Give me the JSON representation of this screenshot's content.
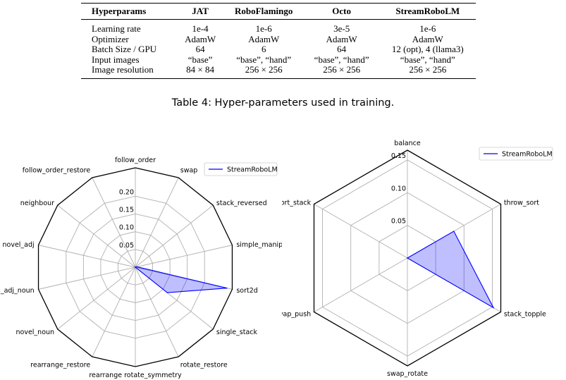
{
  "table": {
    "headers": [
      "Hyperparams",
      "JAT",
      "RoboFlamingo",
      "Octo",
      "StreamRoboLM"
    ],
    "rows": [
      [
        "Learning rate",
        "1e-4",
        "1e-6",
        "3e-5",
        "1e-6"
      ],
      [
        "Optimizer",
        "AdamW",
        "AdamW",
        "AdamW",
        "AdamW"
      ],
      [
        "Batch Size / GPU",
        "64",
        "6",
        "64",
        "12 (opt), 4 (llama3)"
      ],
      [
        "Input images",
        "“base”",
        "“base”, “hand”",
        "“base”, “hand”",
        "“base”, “hand”"
      ],
      [
        "Image resolution",
        "84 × 84",
        "256 × 256",
        "256 × 256",
        "256 × 256"
      ]
    ]
  },
  "caption": "Table 4: Hyper-parameters used in training.",
  "chart_data": [
    {
      "type": "radar",
      "categories": [
        "follow_order",
        "swap",
        "stack_reversed",
        "simple_manipulation",
        "sort2d",
        "single_stack",
        "rotate_restore",
        "rearrange rotate_symmetry",
        "rearrange_restore",
        "novel_noun",
        "novel_adj_noun",
        "novel_adj",
        "neighbour",
        "follow_order_restore"
      ],
      "ticks": [
        "0.05",
        "0.10",
        "0.15",
        "0.20"
      ],
      "rlim": [
        0,
        0.28
      ],
      "series": [
        {
          "name": "StreamRoboLM",
          "values": [
            0.0,
            0.0,
            0.0,
            0.005,
            0.265,
            0.115,
            0.0,
            0.0,
            0.0,
            0.0,
            0.0,
            0.0,
            0.0,
            0.0
          ],
          "color": "#0000ff"
        }
      ],
      "legend": "top-right",
      "grid": true
    },
    {
      "type": "radar",
      "categories": [
        "balance",
        "throw_sort",
        "stack_topple",
        "swap_rotate",
        "swap_push",
        "sort_stack"
      ],
      "ticks": [
        "0.05",
        "0.10",
        "0.15"
      ],
      "rlim": [
        0,
        0.165
      ],
      "series": [
        {
          "name": "StreamRoboLM",
          "values": [
            0.0,
            0.082,
            0.152,
            0.0,
            0.0,
            0.0
          ],
          "color": "#0000ff"
        }
      ],
      "legend": "top-right",
      "grid": true
    }
  ]
}
